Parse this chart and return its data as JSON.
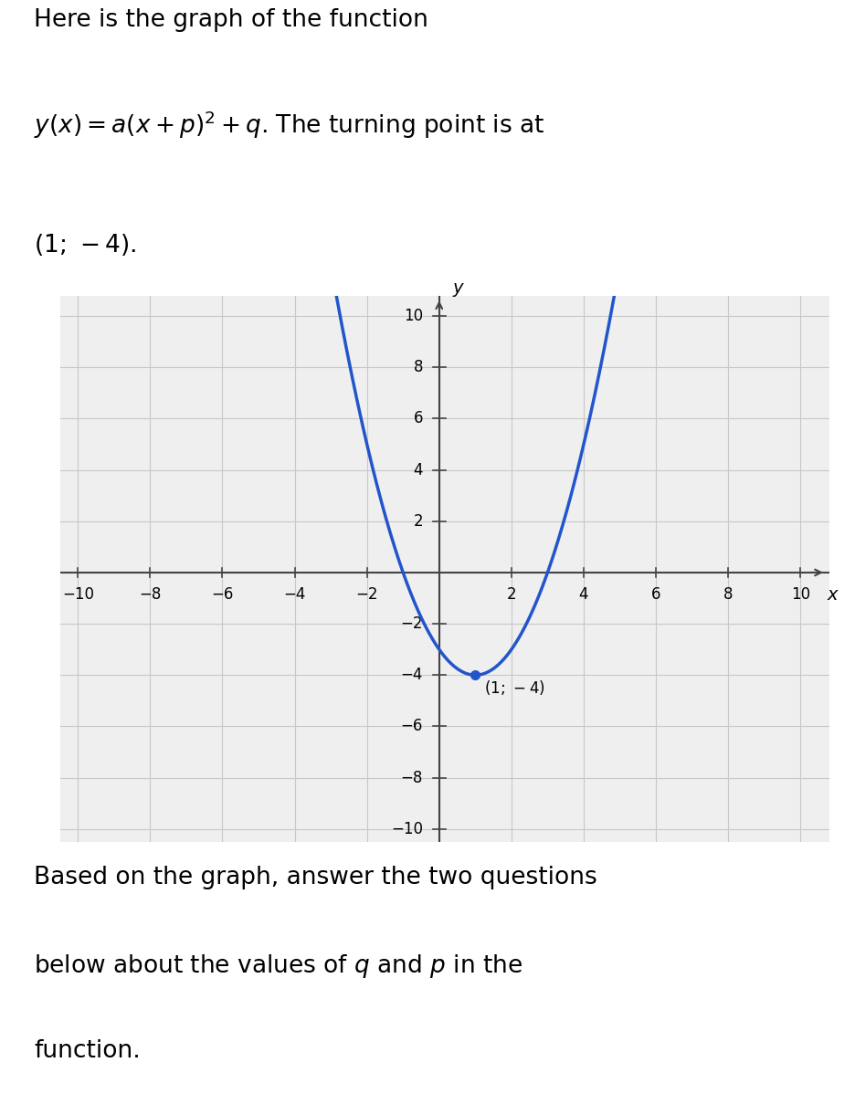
{
  "title_line1": "Here is the graph of the function",
  "title_line2": "y(x) = a(x + p)^{2} + q. The turning point is at",
  "title_line3": "(1; −4).",
  "bottom_text_line1": "Based on the graph, answer the two questions",
  "bottom_text_line2": "below about the values of q and p in the",
  "bottom_text_line3": "function.",
  "curve_color": "#2255cc",
  "dot_color": "#2255cc",
  "turning_point": [
    1,
    -4
  ],
  "a_coeff": 1.0,
  "xlim": [
    -10.5,
    10.8
  ],
  "ylim": [
    -10.5,
    10.8
  ],
  "xticks": [
    -10,
    -8,
    -6,
    -4,
    -2,
    0,
    2,
    4,
    6,
    8,
    10
  ],
  "yticks": [
    -10,
    -8,
    -6,
    -4,
    -2,
    0,
    2,
    4,
    6,
    8,
    10
  ],
  "grid_color": "#c8c8c8",
  "axis_color": "#444444",
  "background_color": "#efefef",
  "font_size_title1": 19,
  "font_size_title2": 19,
  "font_size_ticks": 12,
  "font_size_axis_labels": 14,
  "font_size_annotation": 12
}
